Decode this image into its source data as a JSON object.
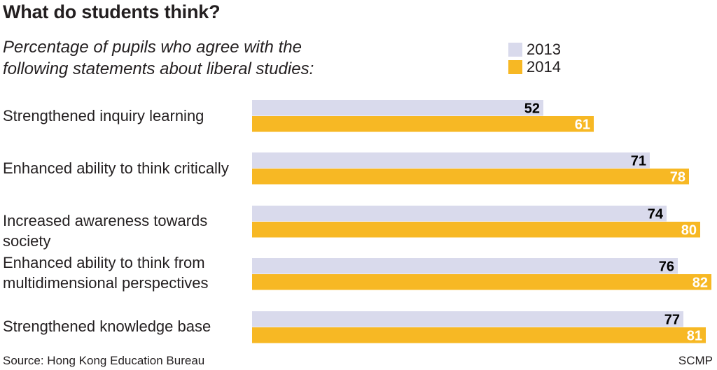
{
  "header": {
    "title": "What do students think?",
    "subtitle": "Percentage of pupils who agree with the following statements about liberal studies:"
  },
  "footer": {
    "source": "Source: Hong Kong Education Bureau",
    "credit": "SCMP"
  },
  "colors": {
    "series_2013": "#d9daec",
    "series_2014": "#f7b824",
    "label_2013": "#000000",
    "label_2014": "#ffffff"
  },
  "chart_data": {
    "type": "bar",
    "orientation": "horizontal",
    "title": "What do students think?",
    "subtitle": "Percentage of pupils who agree with the following statements about liberal studies:",
    "categories": [
      "Strengthened inquiry learning",
      "Enhanced ability to think critically",
      "Increased awareness towards society",
      "Enhanced ability to think from multidimensional perspectives",
      "Strengthened knowledge base"
    ],
    "series": [
      {
        "name": "2013",
        "values": [
          52,
          71,
          74,
          76,
          77
        ]
      },
      {
        "name": "2014",
        "values": [
          61,
          78,
          80,
          82,
          81
        ]
      }
    ],
    "xlim": [
      0,
      82
    ],
    "legend_position": "top-right",
    "grid": false,
    "data_labels": true
  }
}
